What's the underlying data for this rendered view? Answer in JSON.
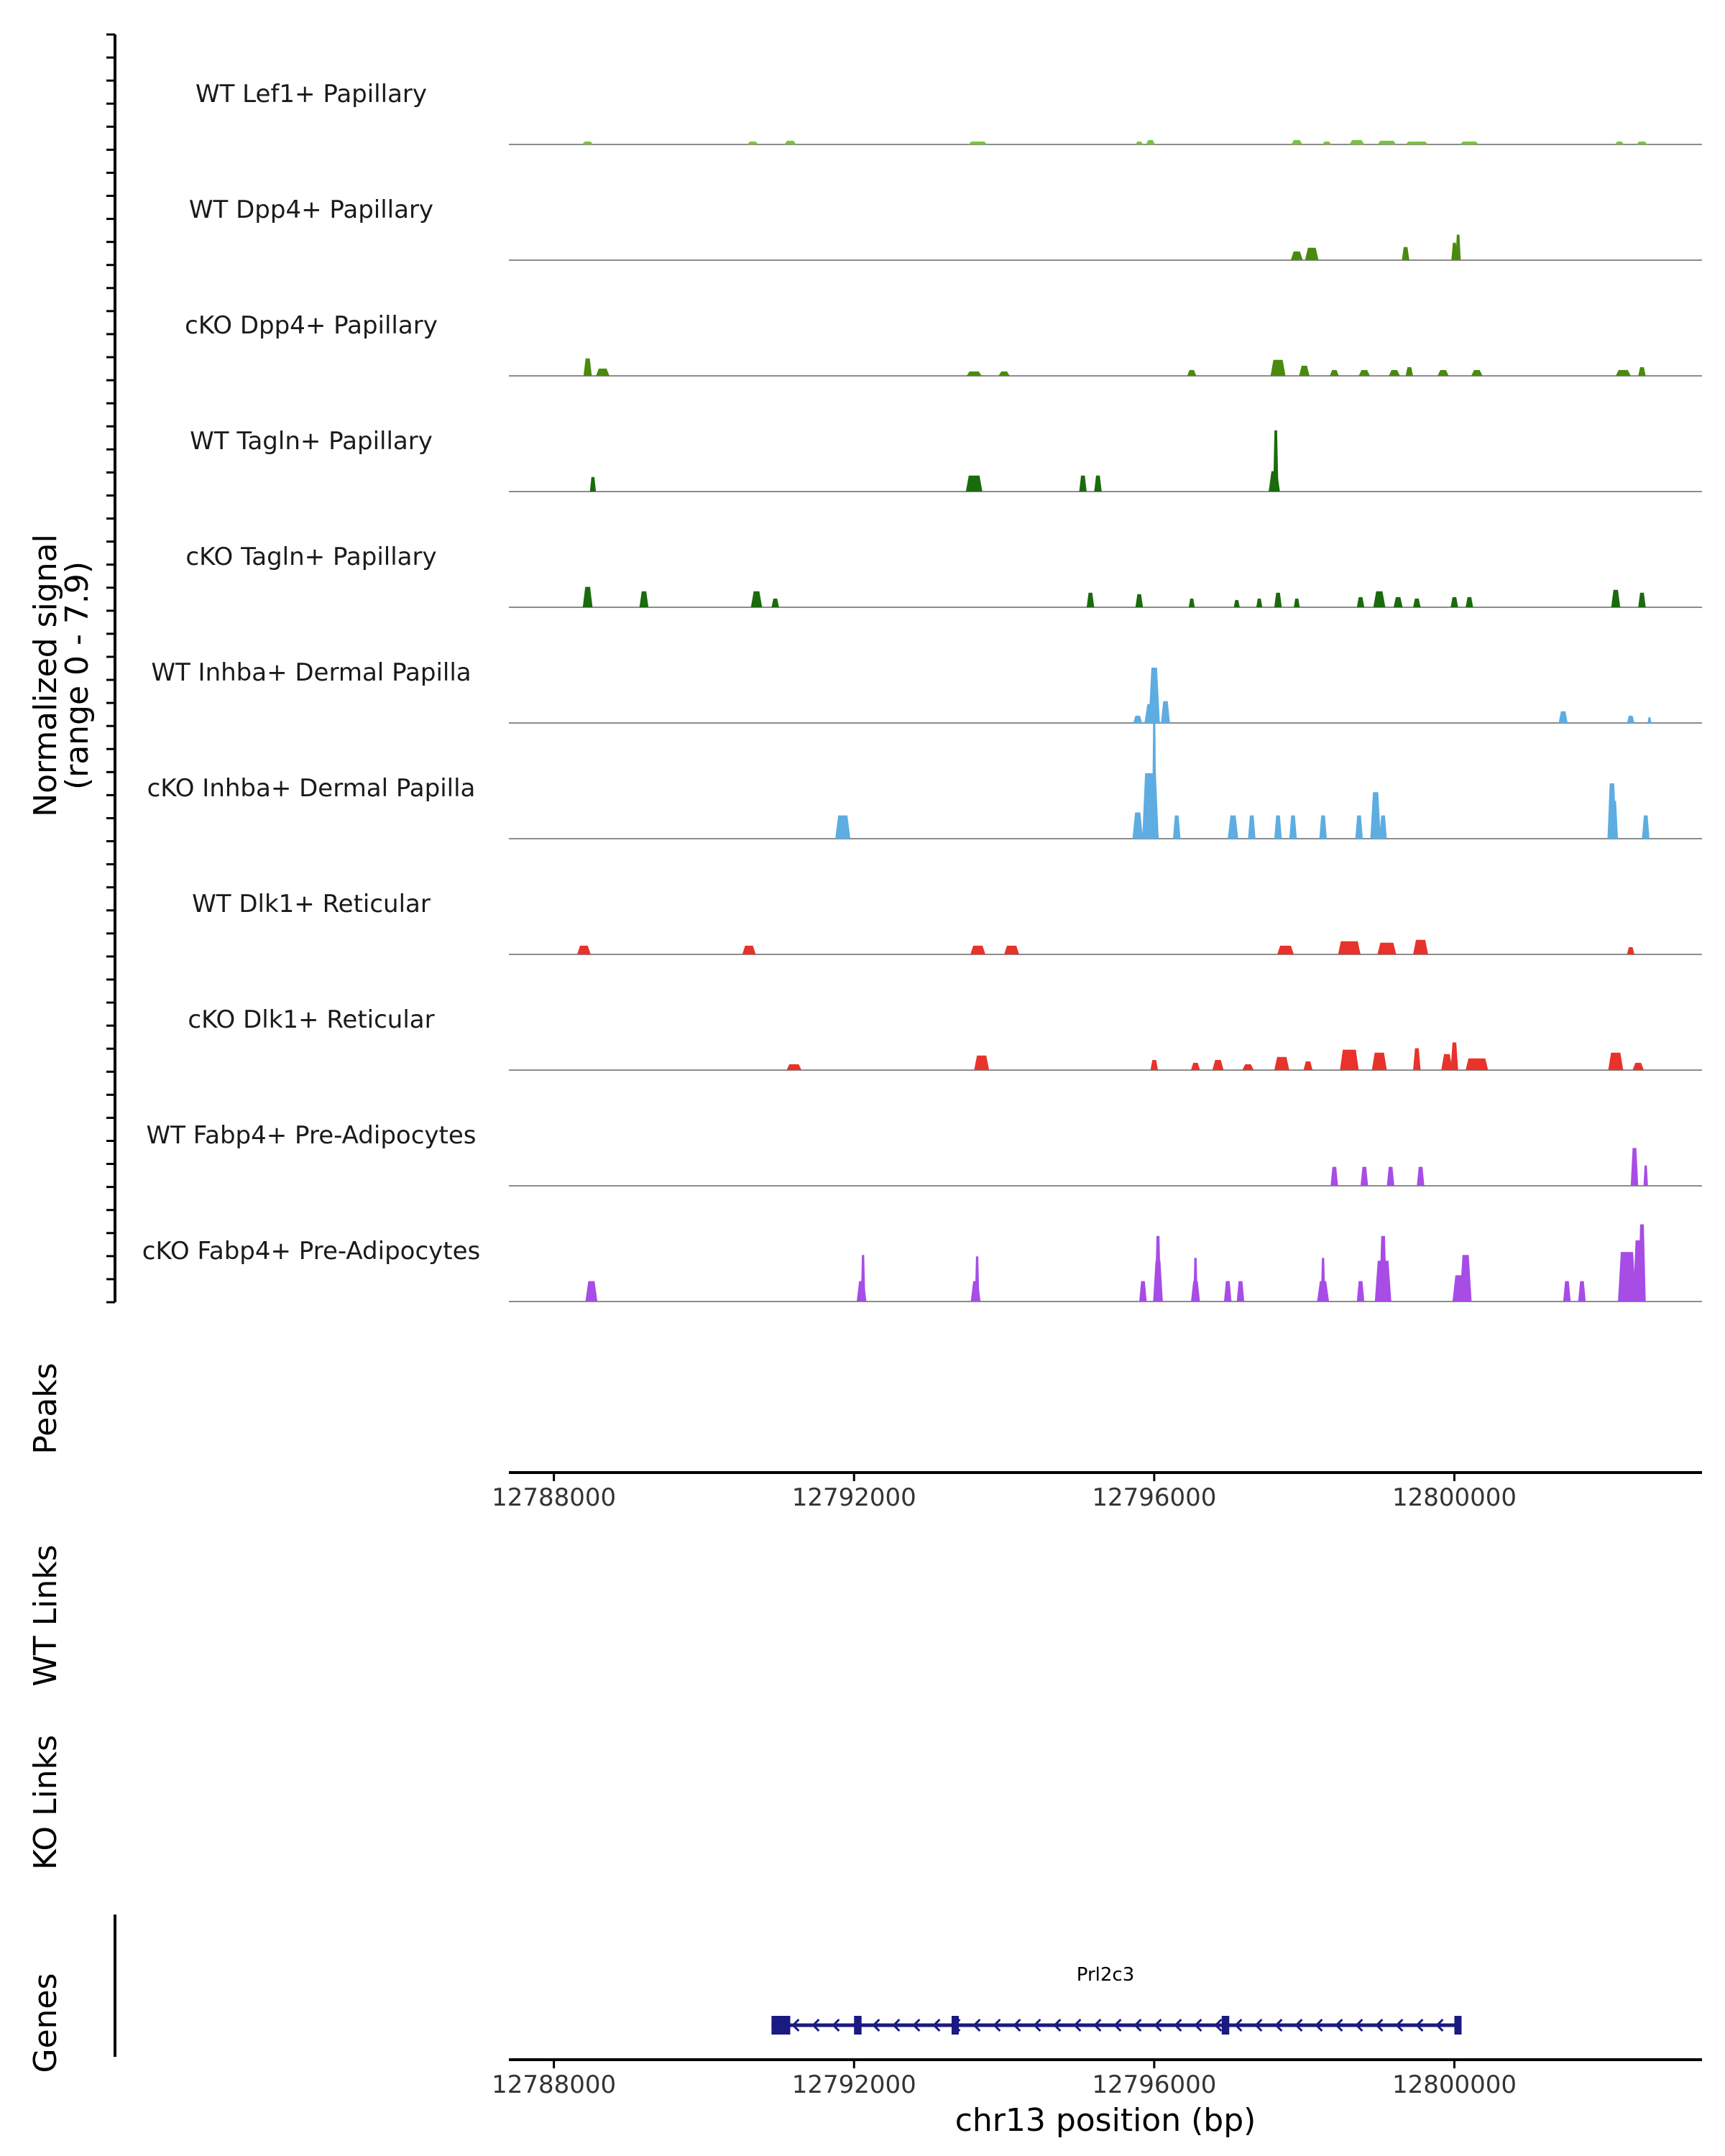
{
  "chart_data": {
    "type": "area",
    "title": "",
    "xlabel": "chr13 position (bp)",
    "ylabel": "Normalized signal",
    "ylabel_range": "(range 0 - 7.9)",
    "xlim": [
      12787400,
      12803300
    ],
    "ylim": [
      0,
      7.9
    ],
    "xticks": [
      12788000,
      12792000,
      12796000,
      12800000
    ],
    "xtick_labels": [
      "12788000",
      "12792000",
      "12796000",
      "12800000"
    ],
    "series": [
      {
        "name": "WT Lef1+ Papillary",
        "color": "#7ac142",
        "peaks": [
          [
            12788450,
            0.2,
            150
          ],
          [
            12790650,
            0.2,
            150
          ],
          [
            12791150,
            0.25,
            160
          ],
          [
            12793650,
            0.2,
            250
          ],
          [
            12795800,
            0.2,
            100
          ],
          [
            12795950,
            0.3,
            120
          ],
          [
            12797900,
            0.3,
            150
          ],
          [
            12798300,
            0.2,
            120
          ],
          [
            12798700,
            0.3,
            200
          ],
          [
            12799100,
            0.25,
            250
          ],
          [
            12799500,
            0.2,
            300
          ],
          [
            12800200,
            0.2,
            250
          ],
          [
            12802200,
            0.2,
            120
          ],
          [
            12802500,
            0.2,
            150
          ]
        ]
      },
      {
        "name": "WT Dpp4+ Papillary",
        "color": "#4a8a0e",
        "peaks": [
          [
            12797900,
            0.6,
            160
          ],
          [
            12798100,
            0.85,
            180
          ],
          [
            12799350,
            0.9,
            100
          ],
          [
            12800000,
            1.2,
            80
          ],
          [
            12800050,
            1.75,
            70
          ]
        ]
      },
      {
        "name": "cKO Dpp4+ Papillary",
        "color": "#4a8a0e",
        "peaks": [
          [
            12788450,
            1.2,
            110
          ],
          [
            12788650,
            0.5,
            180
          ],
          [
            12793600,
            0.3,
            200
          ],
          [
            12794000,
            0.3,
            150
          ],
          [
            12796500,
            0.4,
            120
          ],
          [
            12797650,
            1.1,
            200
          ],
          [
            12798000,
            0.7,
            140
          ],
          [
            12798400,
            0.4,
            120
          ],
          [
            12798800,
            0.4,
            150
          ],
          [
            12799200,
            0.4,
            150
          ],
          [
            12799400,
            0.6,
            100
          ],
          [
            12799850,
            0.4,
            150
          ],
          [
            12800300,
            0.4,
            150
          ],
          [
            12802250,
            0.4,
            200
          ],
          [
            12802500,
            0.6,
            100
          ]
        ]
      },
      {
        "name": "WT Tagln+ Papillary",
        "color": "#1a6b0c",
        "peaks": [
          [
            12788520,
            1.0,
            80
          ],
          [
            12793600,
            1.1,
            220
          ],
          [
            12795050,
            1.1,
            100
          ],
          [
            12795250,
            1.1,
            100
          ],
          [
            12797600,
            1.4,
            150
          ],
          [
            12797620,
            4.2,
            70
          ]
        ]
      },
      {
        "name": "cKO Tagln+ Papillary",
        "color": "#1a6b0c",
        "peaks": [
          [
            12788450,
            1.4,
            130
          ],
          [
            12789200,
            1.1,
            120
          ],
          [
            12790700,
            1.1,
            150
          ],
          [
            12790950,
            0.6,
            100
          ],
          [
            12795150,
            1.0,
            100
          ],
          [
            12795800,
            0.9,
            100
          ],
          [
            12796500,
            0.6,
            80
          ],
          [
            12797100,
            0.5,
            80
          ],
          [
            12797400,
            0.6,
            80
          ],
          [
            12797650,
            1.0,
            100
          ],
          [
            12797900,
            0.6,
            80
          ],
          [
            12798750,
            0.7,
            100
          ],
          [
            12799000,
            1.1,
            160
          ],
          [
            12799250,
            0.7,
            120
          ],
          [
            12799500,
            0.6,
            100
          ],
          [
            12800000,
            0.7,
            100
          ],
          [
            12800200,
            0.7,
            100
          ],
          [
            12802150,
            1.2,
            120
          ],
          [
            12802500,
            1.0,
            100
          ]
        ]
      },
      {
        "name": "WT Inhba+ Dermal Papilla",
        "color": "#5dade2",
        "peaks": [
          [
            12795780,
            0.5,
            120
          ],
          [
            12795950,
            1.3,
            160
          ],
          [
            12796000,
            3.8,
            150
          ],
          [
            12796150,
            1.5,
            120
          ],
          [
            12801450,
            0.8,
            120
          ],
          [
            12802350,
            0.5,
            100
          ],
          [
            12802600,
            0.4,
            50
          ]
        ]
      },
      {
        "name": "cKO Inhba+ Dermal Papilla",
        "color": "#5dade2",
        "peaks": [
          [
            12791850,
            1.6,
            200
          ],
          [
            12795780,
            1.8,
            140
          ],
          [
            12795950,
            4.5,
            220
          ],
          [
            12796000,
            7.9,
            60
          ],
          [
            12796300,
            1.6,
            100
          ],
          [
            12797050,
            1.6,
            140
          ],
          [
            12797300,
            1.6,
            100
          ],
          [
            12797650,
            1.6,
            100
          ],
          [
            12797850,
            1.6,
            100
          ],
          [
            12798250,
            1.6,
            100
          ],
          [
            12798730,
            1.6,
            100
          ],
          [
            12798950,
            3.2,
            140
          ],
          [
            12799050,
            1.6,
            100
          ],
          [
            12802100,
            3.8,
            120
          ],
          [
            12802130,
            2.6,
            100
          ],
          [
            12802550,
            1.6,
            100
          ]
        ]
      },
      {
        "name": "WT Dlk1+ Reticular",
        "color": "#e8332a",
        "peaks": [
          [
            12788400,
            0.6,
            180
          ],
          [
            12790600,
            0.6,
            180
          ],
          [
            12793650,
            0.6,
            200
          ],
          [
            12794100,
            0.6,
            200
          ],
          [
            12797750,
            0.6,
            220
          ],
          [
            12798600,
            0.9,
            300
          ],
          [
            12799100,
            0.8,
            250
          ],
          [
            12799550,
            1.0,
            200
          ],
          [
            12802350,
            0.5,
            100
          ]
        ]
      },
      {
        "name": "cKO Dlk1+ Reticular",
        "color": "#e8332a",
        "peaks": [
          [
            12791200,
            0.4,
            200
          ],
          [
            12793700,
            1.0,
            200
          ],
          [
            12796000,
            0.7,
            100
          ],
          [
            12796550,
            0.5,
            120
          ],
          [
            12796850,
            0.7,
            150
          ],
          [
            12797250,
            0.4,
            150
          ],
          [
            12797700,
            0.9,
            200
          ],
          [
            12798050,
            0.6,
            120
          ],
          [
            12798600,
            1.4,
            250
          ],
          [
            12799000,
            1.2,
            200
          ],
          [
            12799500,
            1.5,
            100
          ],
          [
            12799900,
            1.1,
            150
          ],
          [
            12800000,
            1.9,
            100
          ],
          [
            12800300,
            0.8,
            300
          ],
          [
            12802150,
            1.2,
            200
          ],
          [
            12802450,
            0.5,
            150
          ]
        ]
      },
      {
        "name": "WT Fabp4+ Pre-Adipocytes",
        "color": "#a84ce6",
        "peaks": [
          [
            12798400,
            1.3,
            100
          ],
          [
            12798800,
            1.3,
            100
          ],
          [
            12799150,
            1.3,
            100
          ],
          [
            12799550,
            1.3,
            100
          ],
          [
            12802400,
            2.6,
            100
          ],
          [
            12802550,
            1.4,
            60
          ]
        ]
      },
      {
        "name": "cKO Fabp4+ Pre-Adipocytes",
        "color": "#a84ce6",
        "peaks": [
          [
            12788500,
            1.4,
            160
          ],
          [
            12792100,
            1.4,
            130
          ],
          [
            12792120,
            3.2,
            60
          ],
          [
            12793620,
            1.4,
            130
          ],
          [
            12793640,
            3.1,
            60
          ],
          [
            12795850,
            1.4,
            100
          ],
          [
            12796050,
            2.8,
            130
          ],
          [
            12796050,
            4.5,
            80
          ],
          [
            12796550,
            1.4,
            120
          ],
          [
            12796550,
            3.0,
            60
          ],
          [
            12796980,
            1.4,
            100
          ],
          [
            12797150,
            1.4,
            100
          ],
          [
            12798250,
            1.4,
            160
          ],
          [
            12798250,
            3.0,
            60
          ],
          [
            12798750,
            1.4,
            100
          ],
          [
            12799050,
            2.8,
            220
          ],
          [
            12799050,
            4.5,
            100
          ],
          [
            12800100,
            1.8,
            250
          ],
          [
            12800150,
            3.2,
            160
          ],
          [
            12801500,
            1.4,
            100
          ],
          [
            12801700,
            1.4,
            100
          ],
          [
            12802300,
            3.4,
            240
          ],
          [
            12802450,
            4.2,
            140
          ],
          [
            12802500,
            5.3,
            100
          ]
        ]
      }
    ],
    "panels": {
      "peaks_label": "Peaks",
      "wt_links_label": "WT Links",
      "ko_links_label": "KO Links",
      "genes_label": "Genes"
    },
    "gene": {
      "name": "Prl2c3",
      "start": 12790900,
      "end": 12800050,
      "strand": "-",
      "exons": [
        [
          12790900,
          12791150
        ],
        [
          12792000,
          12792100
        ],
        [
          12793300,
          12793350
        ],
        [
          12796900,
          12797000
        ],
        [
          12800000,
          12800050
        ]
      ],
      "color": "#1a1a80"
    }
  }
}
